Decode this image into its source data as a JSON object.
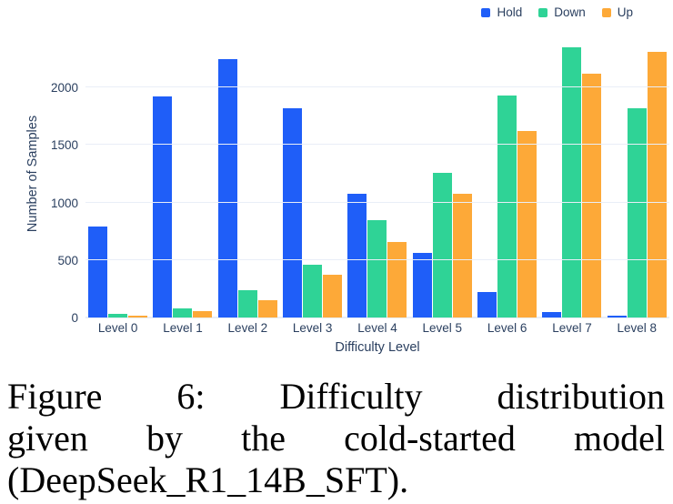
{
  "chart_data": {
    "type": "bar",
    "title": "",
    "xlabel": "Difficulty Level",
    "ylabel": "Number of Samples",
    "categories": [
      "Level 0",
      "Level 1",
      "Level 2",
      "Level 3",
      "Level 4",
      "Level 5",
      "Level 6",
      "Level 7",
      "Level 8"
    ],
    "series": [
      {
        "name": "Hold",
        "color": "#1f5ef8",
        "values": [
          790,
          1920,
          2250,
          1820,
          1080,
          560,
          220,
          45,
          15
        ]
      },
      {
        "name": "Down",
        "color": "#2fd396",
        "values": [
          30,
          80,
          240,
          460,
          850,
          1260,
          1930,
          2350,
          1820
        ]
      },
      {
        "name": "Up",
        "color": "#fda938",
        "values": [
          15,
          55,
          150,
          370,
          660,
          1075,
          1620,
          2120,
          2310
        ]
      }
    ],
    "ylim": [
      0,
      2500
    ],
    "yticks": [
      0,
      500,
      1000,
      1500,
      2000
    ],
    "legend_position": "top-right",
    "grid": true
  },
  "colors": {
    "axis_text": "#2a3f5f",
    "gridline": "#e9eef7"
  },
  "caption": {
    "line1": "Figure 6: Difficulty distribution",
    "line2": "given by the cold-started model",
    "line3": "(DeepSeek_R1_14B_SFT)."
  }
}
